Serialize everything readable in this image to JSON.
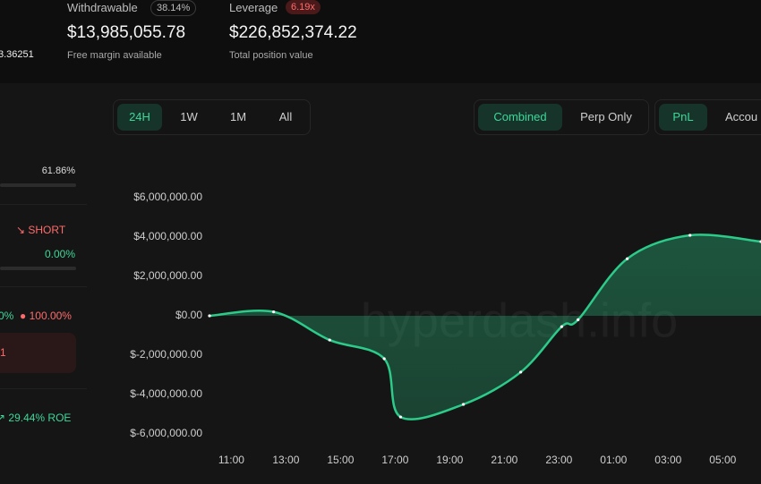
{
  "header": {
    "withdrawable": {
      "label": "Withdrawable",
      "badge": "38.14%",
      "value": "$13,985,055.78",
      "caption": "Free margin available"
    },
    "leverage": {
      "label": "Leverage",
      "badge": "6.19x",
      "value": "$226,852,374.22",
      "caption": "Total position value"
    },
    "left_value": "3.36251"
  },
  "left_panel": {
    "ratio": "61.86%",
    "side": "SHORT",
    "change": "0.00%",
    "long_pct": "0%",
    "short_pct": "100.00%",
    "box_text": "1",
    "roe": "29.44% ROE"
  },
  "time_tabs": [
    "24H",
    "1W",
    "1M",
    "All"
  ],
  "mode_tabs": [
    "Combined",
    "Perp Only"
  ],
  "metric_tabs": [
    "PnL",
    "Accou"
  ],
  "watermark": "hyperdash.info",
  "chart_data": {
    "type": "area",
    "x": [
      10.2,
      12.55,
      14.6,
      16.6,
      17.2,
      19.5,
      21.6,
      23.1,
      23.7,
      25.5,
      27.8,
      30.4
    ],
    "series": [
      {
        "name": "PnL",
        "color": "#2ccb8a",
        "values": [
          0,
          200000,
          -1230000,
          -2180000,
          -5140000,
          -4500000,
          -2860000,
          -550000,
          -200000,
          2900000,
          4090000,
          3770000
        ]
      }
    ],
    "xlim": [
      10.2,
      30.4
    ],
    "xticks": [
      {
        "value": 11,
        "label": "11:00"
      },
      {
        "value": 13,
        "label": "13:00"
      },
      {
        "value": 15,
        "label": "15:00"
      },
      {
        "value": 17,
        "label": "17:00"
      },
      {
        "value": 19,
        "label": "19:00"
      },
      {
        "value": 21,
        "label": "21:00"
      },
      {
        "value": 23,
        "label": "23:00"
      },
      {
        "value": 25,
        "label": "01:00"
      },
      {
        "value": 27,
        "label": "03:00"
      },
      {
        "value": 29,
        "label": "05:00"
      }
    ],
    "ylim": [
      -6000000,
      6000000
    ],
    "yticks": [
      {
        "value": 6000000,
        "label": "$6,000,000.00"
      },
      {
        "value": 4000000,
        "label": "$4,000,000.00"
      },
      {
        "value": 2000000,
        "label": "$2,000,000.00"
      },
      {
        "value": 0,
        "label": "$0.00"
      },
      {
        "value": -2000000,
        "label": "$-2,000,000.00"
      },
      {
        "value": -4000000,
        "label": "$-4,000,000.00"
      },
      {
        "value": -6000000,
        "label": "$-6,000,000.00"
      }
    ],
    "grid": false
  }
}
